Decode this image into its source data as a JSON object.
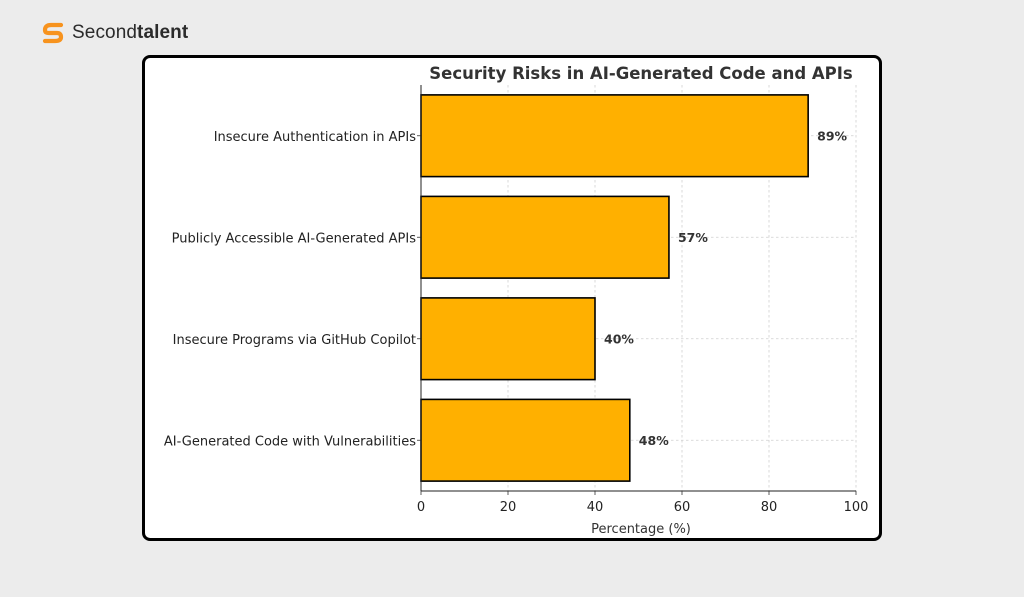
{
  "brand": {
    "name_regular": "Second",
    "name_bold": "talent",
    "logo_icon": "secondtalent-s-logo-icon",
    "logo_color": "#f7931e"
  },
  "chart_data": {
    "type": "bar",
    "orientation": "horizontal",
    "title": "Security Risks in AI-Generated Code and APIs",
    "xlabel": "Percentage (%)",
    "ylabel": "",
    "categories": [
      "Insecure Authentication in APIs",
      "Publicly Accessible AI-Generated APIs",
      "Insecure Programs via GitHub Copilot",
      "AI-Generated Code with Vulnerabilities"
    ],
    "values": [
      89,
      57,
      40,
      48
    ],
    "value_labels": [
      "89%",
      "57%",
      "40%",
      "48%"
    ],
    "xlim": [
      0,
      100
    ],
    "xticks": [
      0,
      20,
      40,
      60,
      80,
      100
    ],
    "xtick_labels": [
      "0",
      "20",
      "40",
      "60",
      "80",
      "100"
    ],
    "grid": true,
    "bar_color": "#ffb000",
    "bar_edge_color": "#000000"
  }
}
